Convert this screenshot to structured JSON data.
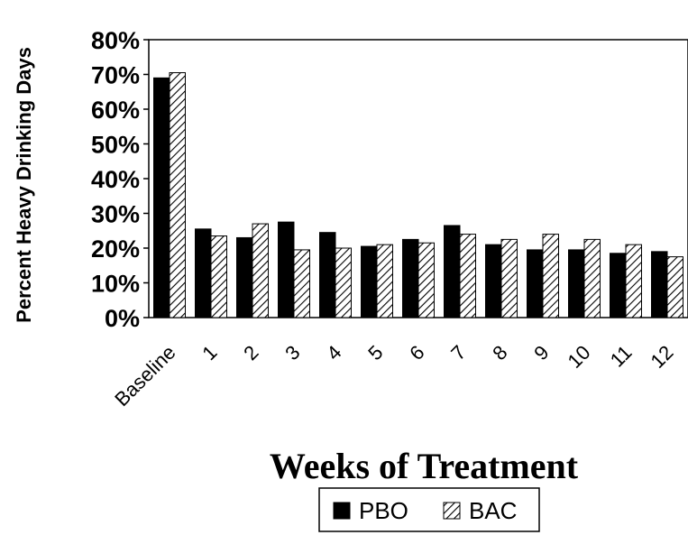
{
  "chart_data": {
    "type": "bar",
    "xlabel": "Weeks of Treatment",
    "ylabel": "Percent Heavy Drinking Days",
    "categories": [
      "Baseline",
      "1",
      "2",
      "3",
      "4",
      "5",
      "6",
      "7",
      "8",
      "9",
      "10",
      "11",
      "12"
    ],
    "series": [
      {
        "name": "PBO",
        "fill": "solid",
        "color": "#000000",
        "values": [
          69,
          25.5,
          23,
          27.5,
          24.5,
          20.5,
          22.5,
          26.5,
          21,
          19.5,
          19.5,
          18.5,
          19
        ]
      },
      {
        "name": "BAC",
        "fill": "hatched",
        "color": "#000000",
        "values": [
          70.5,
          23.5,
          27,
          19.5,
          20,
          21,
          21.5,
          24,
          22.5,
          24,
          22.5,
          21,
          17.5
        ]
      }
    ],
    "ylim": [
      0,
      80
    ],
    "ytick_step": 10,
    "ytick_format": "percent",
    "grid": false,
    "legend_position": "bottom-center"
  }
}
